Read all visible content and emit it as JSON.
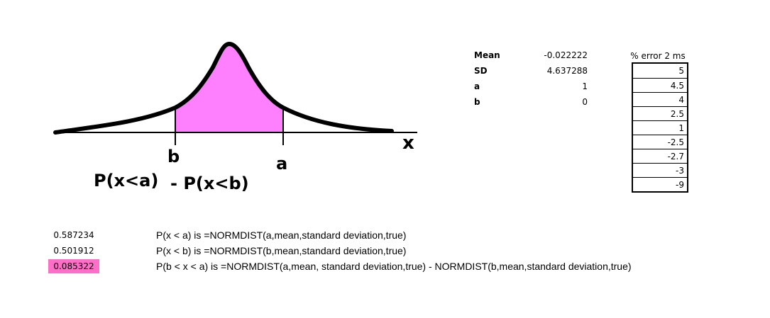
{
  "figure": {
    "x_axis_label": "x",
    "b_label": "b",
    "a_label": "a",
    "prob_a": "P(x<a)",
    "prob_minus": "- P(x<b)",
    "fill_color": "#ff80ff"
  },
  "stats": [
    {
      "label": "Mean",
      "value": "-0.022222"
    },
    {
      "label": "SD",
      "value": "4.637288"
    },
    {
      "label": "a",
      "value": "1"
    },
    {
      "label": "b",
      "value": "0"
    }
  ],
  "error_table": {
    "header": "% error 2 ms",
    "values": [
      "5",
      "4.5",
      "4",
      "2.5",
      "1",
      "-2.5",
      "-2.7",
      "-3",
      "-9"
    ]
  },
  "results": [
    {
      "value": "0.587234",
      "formula": "P(x < a) is =NORMDIST(a,mean,standard deviation,true)",
      "highlight": false
    },
    {
      "value": "0.501912",
      "formula": "P(x < b) is =NORMDIST(b,mean,standard deviation,true)",
      "highlight": false
    },
    {
      "value": "0.085322",
      "formula": "P(b < x < a) is =NORMDIST(a,mean, standard deviation,true) - NORMDIST(b,mean,standard deviation,true)",
      "highlight": true
    }
  ],
  "colors": {
    "highlight": "#ff6ec7"
  }
}
